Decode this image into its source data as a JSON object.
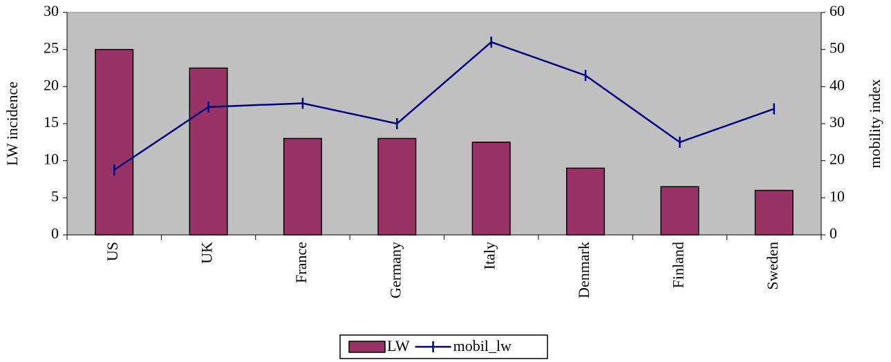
{
  "chart_data": {
    "type": "bar",
    "categories": [
      "US",
      "UK",
      "France",
      "Germany",
      "Italy",
      "Denmark",
      "Finland",
      "Sweden"
    ],
    "series": [
      {
        "name": "LW",
        "type": "bar",
        "color": "#993366",
        "values": [
          25,
          22.5,
          13,
          13,
          12.5,
          9,
          6.5,
          6
        ]
      },
      {
        "name": "mobil_lw",
        "type": "line",
        "axis": "y2",
        "color": "#000080",
        "values": [
          17.5,
          34.5,
          35.5,
          30,
          52,
          43,
          25,
          34
        ]
      }
    ],
    "y_label": "LW incidence",
    "y2_label": "mobility index",
    "ylim": [
      0,
      30
    ],
    "yticks": [
      0,
      5,
      10,
      15,
      20,
      25,
      30
    ],
    "y2lim": [
      0,
      60
    ],
    "y2ticks": [
      0,
      10,
      20,
      30,
      40,
      50,
      60
    ],
    "plot_background": "#c0c0c0",
    "legend": "bottom"
  }
}
